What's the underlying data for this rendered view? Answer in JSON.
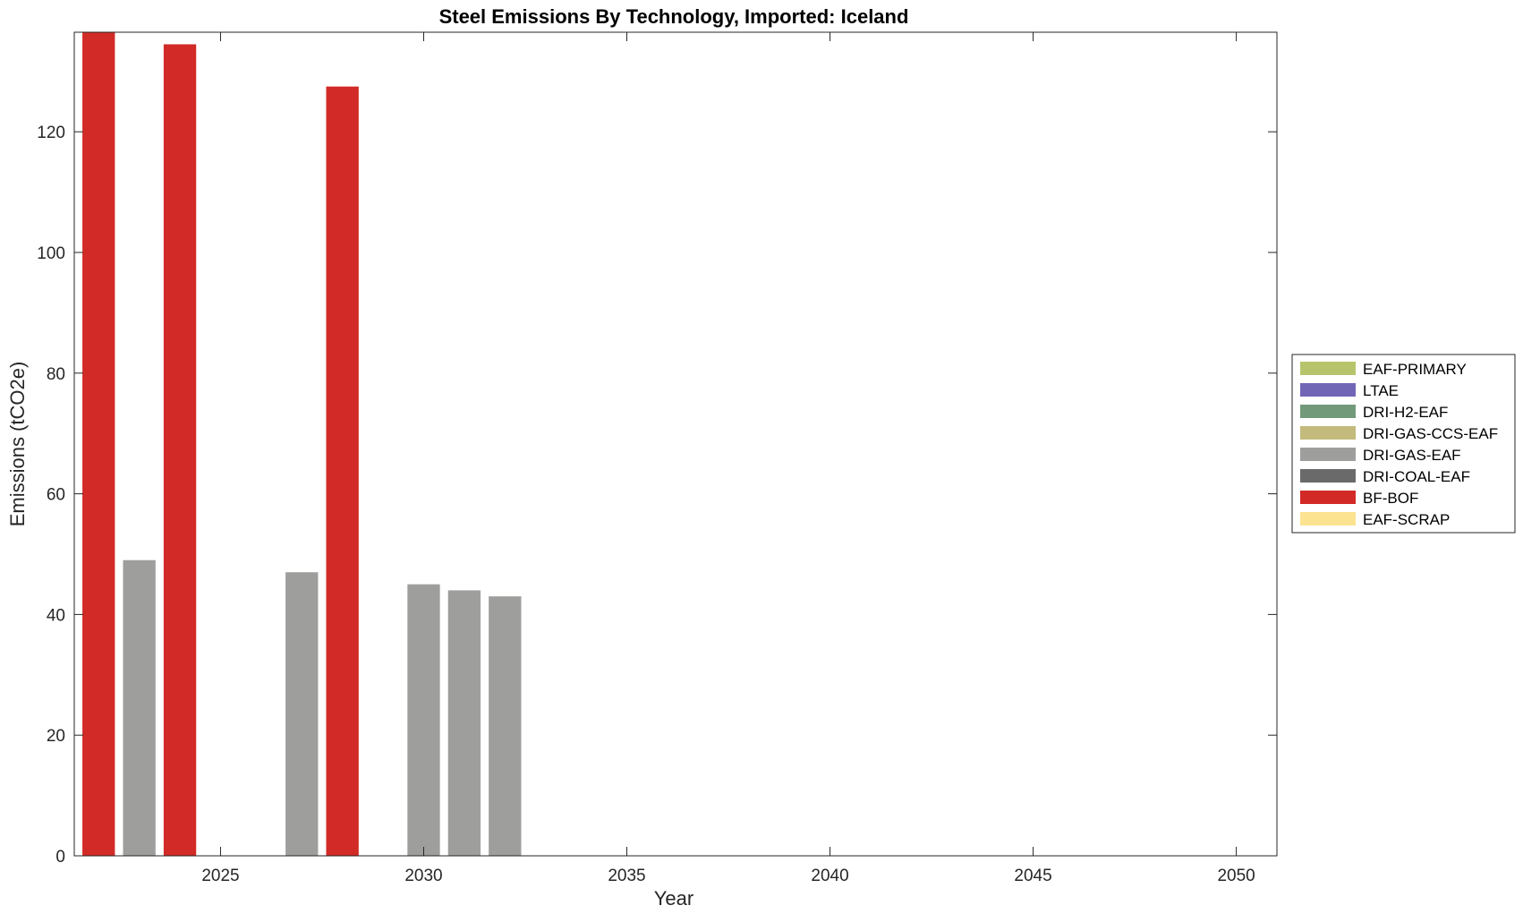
{
  "chart_data": {
    "type": "bar",
    "stacked": true,
    "title": "Steel Emissions By Technology, Imported: Iceland",
    "xlabel": "Year",
    "ylabel": "Emissions (tCO2e)",
    "xlim": [
      2021.4,
      2051
    ],
    "ylim": [
      0,
      136.5
    ],
    "xticks": [
      2025,
      2030,
      2035,
      2040,
      2045,
      2050
    ],
    "yticks": [
      0,
      20,
      40,
      60,
      80,
      100,
      120
    ],
    "grid": false,
    "legend_position": "right",
    "x": [
      2022,
      2023,
      2024,
      2025,
      2026,
      2027,
      2028,
      2029,
      2030,
      2031,
      2032,
      2033,
      2034,
      2035,
      2036,
      2037,
      2038,
      2039,
      2040,
      2041,
      2042,
      2043,
      2044,
      2045,
      2046,
      2047,
      2048,
      2049,
      2050
    ],
    "series": [
      {
        "name": "EAF-PRIMARY",
        "color": "#b8c46c",
        "values": [
          0,
          0,
          0,
          0,
          0,
          0,
          0,
          0,
          0,
          0,
          0,
          0,
          0,
          0,
          0,
          0,
          0,
          0,
          0,
          0,
          0,
          0,
          0,
          0,
          0,
          0,
          0,
          0,
          0
        ]
      },
      {
        "name": "LTAE",
        "color": "#7166b5",
        "values": [
          0,
          0,
          0,
          0,
          0,
          0,
          0,
          0,
          0,
          0,
          0,
          0,
          0,
          0,
          0,
          0,
          0,
          0,
          0,
          0,
          0,
          0,
          0,
          0,
          0,
          0,
          0,
          0,
          0
        ]
      },
      {
        "name": "DRI-H2-EAF",
        "color": "#729a7a",
        "values": [
          0,
          0,
          0,
          0,
          0,
          0,
          0,
          0,
          0,
          0,
          0,
          0,
          0,
          0,
          0,
          0,
          0,
          0,
          0,
          0,
          0,
          0,
          0,
          0,
          0,
          0,
          0,
          0,
          0
        ]
      },
      {
        "name": "DRI-GAS-CCS-EAF",
        "color": "#c3ba7b",
        "values": [
          0,
          0,
          0,
          0,
          0,
          0,
          0,
          0,
          0,
          0,
          0,
          0,
          0,
          0,
          0,
          0,
          0,
          0,
          0,
          0,
          0,
          0,
          0,
          0,
          0,
          0,
          0,
          0,
          0
        ]
      },
      {
        "name": "DRI-GAS-EAF",
        "color": "#9e9e9d",
        "values": [
          0,
          49,
          0,
          0,
          0,
          47,
          0,
          0,
          45,
          44,
          43,
          0,
          0,
          0,
          0,
          0,
          0,
          0,
          0,
          0,
          0,
          0,
          0,
          0,
          0,
          0,
          0,
          0,
          0
        ]
      },
      {
        "name": "DRI-COAL-EAF",
        "color": "#6a6a6a",
        "values": [
          0,
          0,
          0,
          0,
          0,
          0,
          0,
          0,
          0,
          0,
          0,
          0,
          0,
          0,
          0,
          0,
          0,
          0,
          0,
          0,
          0,
          0,
          0,
          0,
          0,
          0,
          0,
          0,
          0
        ]
      },
      {
        "name": "BF-BOF",
        "color": "#d22a26",
        "values": [
          137,
          0,
          134.5,
          0,
          0,
          0,
          127.5,
          0,
          0,
          0,
          0,
          0,
          0,
          0,
          0,
          0,
          0,
          0,
          0,
          0,
          0,
          0,
          0,
          0,
          0,
          0,
          0,
          0,
          0
        ]
      },
      {
        "name": "EAF-SCRAP",
        "color": "#fce392",
        "values": [
          0,
          0,
          0,
          0,
          0,
          0,
          0,
          0,
          0,
          0,
          0,
          0,
          0,
          0,
          0,
          0,
          0,
          0,
          0,
          0,
          0,
          0,
          0,
          0,
          0,
          0,
          0,
          0,
          0
        ]
      }
    ]
  }
}
